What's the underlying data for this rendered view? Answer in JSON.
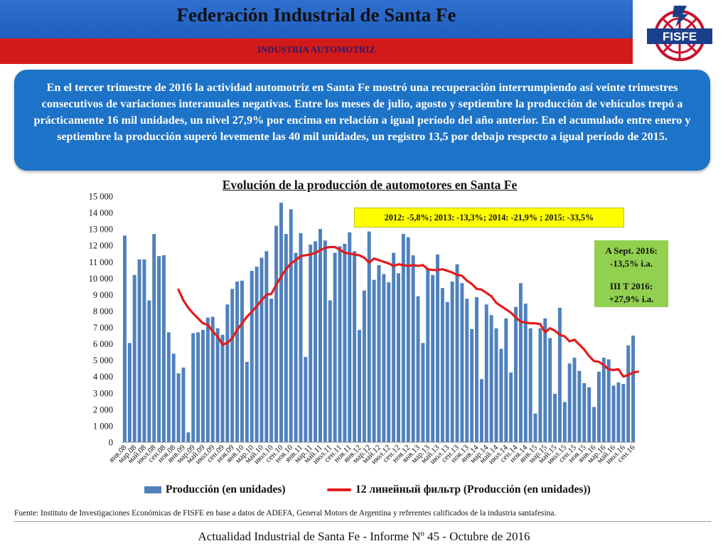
{
  "header": {
    "title": "Federación Industrial de Santa Fe",
    "subtitle": "INDUSTRIA AUTOMOTRIZ",
    "logo_text": "FISFE"
  },
  "summary": "En el tercer trimestre de 2016 la actividad automotriz en Santa Fe mostró una recuperación interrumpiendo así veinte trimestres consecutivos de variaciones interanuales negativas. Entre los meses de julio, agosto y septiembre la producción de vehículos trepó a prácticamente 16 mil unidades, un nivel 27,9% por encima en relación a igual período del año anterior. En el acumulado entre enero y septiembre la producción superó levemente las 40 mil unidades, un registro 13,5 por debajo respecto a igual período de 2015.",
  "chart_data": {
    "type": "bar",
    "title": "Evolución de la producción de automotores en Santa Fe",
    "ylim": [
      0,
      15000
    ],
    "yticks": [
      "0",
      "1 000",
      "2 000",
      "3 000",
      "4 000",
      "5 000",
      "6 000",
      "7 000",
      "8 000",
      "9 000",
      "10 000",
      "11 000",
      "12 000",
      "13 000",
      "14 000",
      "15 000"
    ],
    "ytick_values": [
      0,
      1000,
      2000,
      3000,
      4000,
      5000,
      6000,
      7000,
      8000,
      9000,
      10000,
      11000,
      12000,
      13000,
      14000,
      15000
    ],
    "xtick_labels": [
      "янв.08",
      "мар.08",
      "май.08",
      "июл.08",
      "сен.08",
      "ноя.08",
      "янв.09",
      "мар.09",
      "май.09",
      "июл.09",
      "сен.09",
      "ноя.09",
      "янв.10",
      "мар.10",
      "май.10",
      "июл.10",
      "сен.10",
      "ноя.10",
      "янв.11",
      "мар.11",
      "май.11",
      "июл.11",
      "сен.11",
      "ноя.11",
      "янв.12",
      "мар.12",
      "май.12",
      "июл.12",
      "сен.12",
      "ноя.12",
      "янв.13",
      "мар.13",
      "май.13",
      "июл.13",
      "сен.13",
      "ноя.13",
      "янв.14",
      "мар.14",
      "май.14",
      "июл.14",
      "сен.14",
      "ноя.14",
      "янв.15",
      "мар.15",
      "май.15",
      "июл.15",
      "сен.15",
      "ноя.15",
      "янв.16",
      "мар.16",
      "май.16",
      "июл.16",
      "сен.16"
    ],
    "legend_placement": "bottom",
    "grid": false,
    "series": [
      {
        "name": "Producción (en unidades)",
        "type": "bar",
        "color": "#4f81bd",
        "values": [
          12600,
          6050,
          10200,
          11150,
          11150,
          8650,
          12700,
          11350,
          11400,
          6700,
          5400,
          4200,
          4550,
          600,
          6650,
          6700,
          6850,
          7600,
          7650,
          6950,
          6550,
          8400,
          9350,
          9800,
          9850,
          4900,
          10450,
          10700,
          11250,
          11650,
          8750,
          13200,
          14600,
          12700,
          14200,
          11550,
          12750,
          5200,
          12050,
          12250,
          13000,
          12300,
          8650,
          11550,
          11950,
          12100,
          12800,
          11650,
          6850,
          9250,
          12850,
          9900,
          10800,
          10250,
          9750,
          11550,
          10300,
          12700,
          12500,
          11400,
          8900,
          6050,
          10600,
          10200,
          11450,
          9400,
          8550,
          9800,
          10850,
          9700,
          8750,
          6900,
          8850,
          3850,
          8400,
          7750,
          6950,
          5700,
          7550,
          4250,
          8250,
          9700,
          8450,
          6950,
          1750,
          6950,
          7550,
          6350,
          2950,
          8200,
          2450,
          4800,
          5150,
          4350,
          3600,
          3350,
          2150,
          4300,
          5150,
          5050,
          3450,
          3650,
          3550,
          5900,
          6500
        ]
      },
      {
        "name": "12 линейный фильтр (Producción (en unidades))",
        "type": "line",
        "color": "#e31b1b",
        "start_index": 11,
        "values": [
          9300,
          8650,
          8200,
          7850,
          7550,
          7250,
          7150,
          6750,
          6450,
          5950,
          6050,
          6350,
          6850,
          7250,
          7650,
          7950,
          8300,
          8650,
          9000,
          9050,
          9600,
          10100,
          10550,
          10900,
          11100,
          11350,
          11400,
          11450,
          11550,
          11700,
          11850,
          11900,
          11900,
          11750,
          11550,
          11500,
          11450,
          11400,
          11250,
          10950,
          11200,
          11100,
          11000,
          10900,
          10750,
          10850,
          10800,
          10750,
          10800,
          10750,
          10800,
          10550,
          10500,
          10500,
          10550,
          10450,
          10350,
          10200,
          10150,
          9850,
          9650,
          9350,
          9300,
          9100,
          8900,
          8500,
          8300,
          8100,
          7900,
          7600,
          7350,
          7300,
          7250,
          7250,
          7200,
          6700,
          6950,
          6800,
          6550,
          6450,
          6150,
          6250,
          5950,
          5650,
          5250,
          4950,
          4900,
          4700,
          4450,
          4400,
          4450,
          4000,
          4100,
          4250,
          4300
        ]
      }
    ]
  },
  "annotations": {
    "yearly": "2012: -5,8%;  2013: -13,3%; 2014: -21,9% ; 2015: -33,5%",
    "sept_line1": "A Sept. 2016:",
    "sept_line2": "-13,5% i.a.",
    "q3_line1": "III T 2016:",
    "q3_line2": "+27,9% i.a."
  },
  "footnote": "Fuente: Instituto de Investigaciones Económicas de FISFE en base a datos de ADEFA, General Motors de Argentina y referentes calificados de la industria santafesina.",
  "bottom_text": "Actualidad Industrial de Santa Fe - Informe Nº 45 - Octubre de 2016"
}
